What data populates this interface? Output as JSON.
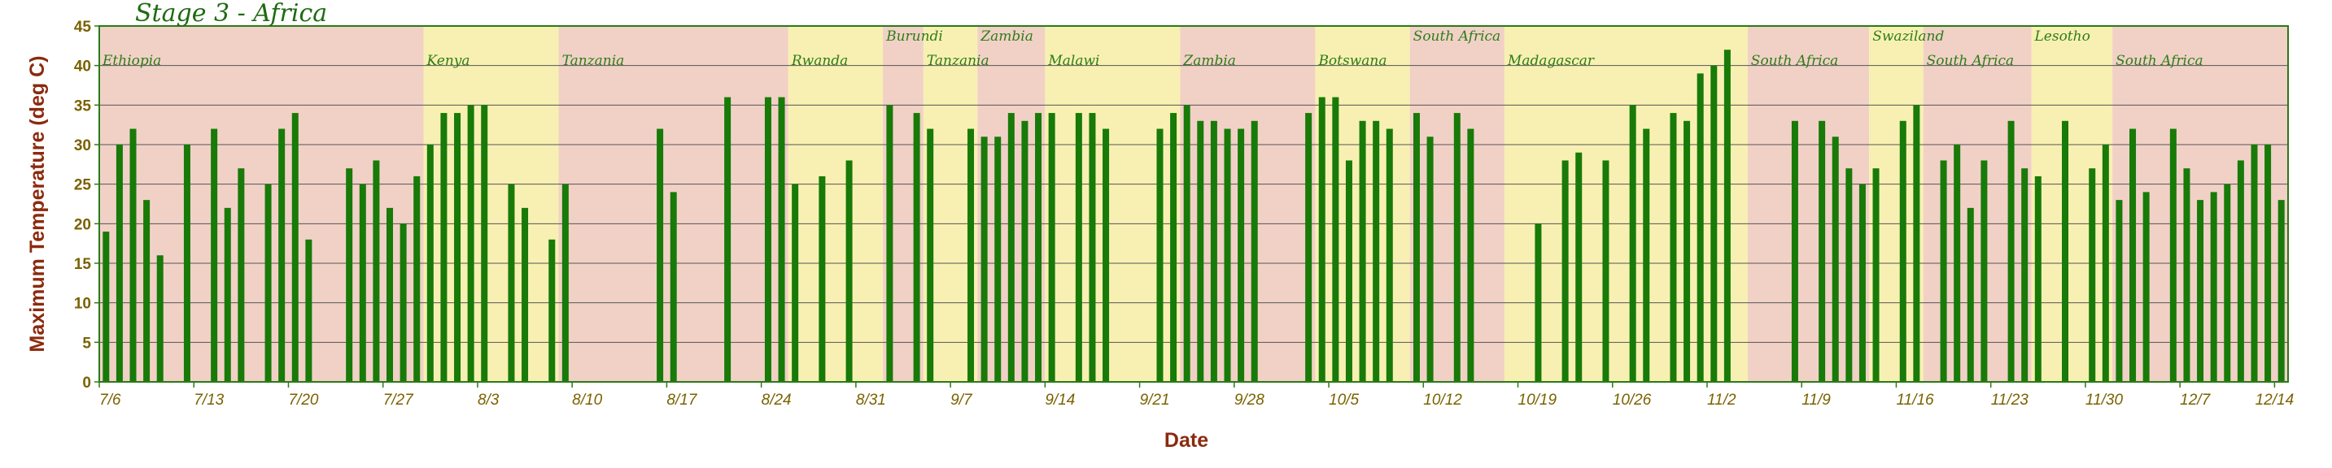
{
  "chart_data": {
    "type": "bar",
    "title": "Stage 3 - Africa",
    "xlabel": "Date",
    "ylabel": "Maximum Temperature (deg C)",
    "ylim": [
      0,
      45
    ],
    "yticks": [
      0,
      5,
      10,
      15,
      20,
      25,
      30,
      35,
      40,
      45
    ],
    "grid": true,
    "xlim": [
      "2010-07-06",
      "2010-12-14"
    ],
    "xticks": [
      "7/6",
      "7/13",
      "7/20",
      "7/27",
      "8/3",
      "8/10",
      "8/17",
      "8/24",
      "8/31",
      "9/7",
      "9/14",
      "9/21",
      "9/28",
      "10/5",
      "10/12",
      "10/19",
      "10/26",
      "11/2",
      "11/9",
      "11/16",
      "11/23",
      "11/30",
      "12/7",
      "12/14"
    ],
    "xtick_dates": [
      "2010-07-06",
      "2010-07-13",
      "2010-07-20",
      "2010-07-27",
      "2010-08-03",
      "2010-08-10",
      "2010-08-17",
      "2010-08-24",
      "2010-08-31",
      "2010-09-07",
      "2010-09-14",
      "2010-09-21",
      "2010-09-28",
      "2010-10-05",
      "2010-10-12",
      "2010-10-19",
      "2010-10-26",
      "2010-11-02",
      "2010-11-09",
      "2010-11-16",
      "2010-11-23",
      "2010-11-30",
      "2010-12-07",
      "2010-12-14"
    ],
    "colors": {
      "bar": "#187a08",
      "band_pink": "#f1d1c6",
      "band_yellow": "#f8f0b2",
      "frame": "#2a7a18",
      "grid": "#555555"
    },
    "country_bands": [
      {
        "name": "Ethiopia",
        "start": "2010-07-06",
        "end": "2010-07-30",
        "color": "pink",
        "label_level": "low"
      },
      {
        "name": "Kenya",
        "start": "2010-07-30",
        "end": "2010-08-09",
        "color": "yellow",
        "label_level": "low"
      },
      {
        "name": "Tanzania",
        "start": "2010-08-09",
        "end": "2010-08-26",
        "color": "pink",
        "label_level": "low"
      },
      {
        "name": "Rwanda",
        "start": "2010-08-26",
        "end": "2010-09-02",
        "color": "yellow",
        "label_level": "low"
      },
      {
        "name": "Burundi",
        "start": "2010-09-02",
        "end": "2010-09-05",
        "color": "pink",
        "label_level": "high"
      },
      {
        "name": "Tanzania",
        "start": "2010-09-05",
        "end": "2010-09-09",
        "color": "yellow",
        "label_level": "low"
      },
      {
        "name": "Zambia",
        "start": "2010-09-09",
        "end": "2010-09-14",
        "color": "pink",
        "label_level": "high"
      },
      {
        "name": "Malawi",
        "start": "2010-09-14",
        "end": "2010-09-24",
        "color": "yellow",
        "label_level": "low"
      },
      {
        "name": "Zambia",
        "start": "2010-09-24",
        "end": "2010-10-04",
        "color": "pink",
        "label_level": "low"
      },
      {
        "name": "Botswana",
        "start": "2010-10-04",
        "end": "2010-10-11",
        "color": "yellow",
        "label_level": "low"
      },
      {
        "name": "South Africa",
        "start": "2010-10-11",
        "end": "2010-10-18",
        "color": "pink",
        "label_level": "high"
      },
      {
        "name": "Madagascar",
        "start": "2010-10-18",
        "end": "2010-11-05",
        "color": "yellow",
        "label_level": "low"
      },
      {
        "name": "South Africa",
        "start": "2010-11-05",
        "end": "2010-11-14",
        "color": "pink",
        "label_level": "low"
      },
      {
        "name": "Swaziland",
        "start": "2010-11-14",
        "end": "2010-11-18",
        "color": "yellow",
        "label_level": "high"
      },
      {
        "name": "South Africa",
        "start": "2010-11-18",
        "end": "2010-11-26",
        "color": "pink",
        "label_level": "low"
      },
      {
        "name": "Lesotho",
        "start": "2010-11-26",
        "end": "2010-12-02",
        "color": "yellow",
        "label_level": "high"
      },
      {
        "name": "South Africa",
        "start": "2010-12-02",
        "end": "2010-12-16",
        "color": "pink",
        "label_level": "low"
      }
    ],
    "series": [
      {
        "x": [
          "2010-07-06",
          "2010-07-07",
          "2010-07-08",
          "2010-07-09",
          "2010-07-10",
          "2010-07-12",
          "2010-07-14",
          "2010-07-15",
          "2010-07-16",
          "2010-07-18",
          "2010-07-19",
          "2010-07-20",
          "2010-07-21",
          "2010-07-24",
          "2010-07-25",
          "2010-07-26",
          "2010-07-27",
          "2010-07-28",
          "2010-07-29",
          "2010-07-30",
          "2010-07-31",
          "2010-08-01",
          "2010-08-02",
          "2010-08-03",
          "2010-08-05",
          "2010-08-06",
          "2010-08-08",
          "2010-08-09",
          "2010-08-16",
          "2010-08-17",
          "2010-08-21",
          "2010-08-24",
          "2010-08-25",
          "2010-08-26",
          "2010-08-28",
          "2010-08-30",
          "2010-09-02",
          "2010-09-04",
          "2010-09-05",
          "2010-09-08",
          "2010-09-09",
          "2010-09-10",
          "2010-09-11",
          "2010-09-12",
          "2010-09-13",
          "2010-09-14",
          "2010-09-16",
          "2010-09-17",
          "2010-09-18",
          "2010-09-22",
          "2010-09-23",
          "2010-09-24",
          "2010-09-25",
          "2010-09-26",
          "2010-09-27",
          "2010-09-28",
          "2010-09-29",
          "2010-10-03",
          "2010-10-04",
          "2010-10-05",
          "2010-10-06",
          "2010-10-07",
          "2010-10-08",
          "2010-10-09",
          "2010-10-11",
          "2010-10-12",
          "2010-10-14",
          "2010-10-15",
          "2010-10-20",
          "2010-10-22",
          "2010-10-23",
          "2010-10-25",
          "2010-10-27",
          "2010-10-28",
          "2010-10-30",
          "2010-10-31",
          "2010-11-01",
          "2010-11-02",
          "2010-11-03",
          "2010-11-08",
          "2010-11-10",
          "2010-11-11",
          "2010-11-12",
          "2010-11-13",
          "2010-11-14",
          "2010-11-16",
          "2010-11-17",
          "2010-11-19",
          "2010-11-20",
          "2010-11-21",
          "2010-11-22",
          "2010-11-24",
          "2010-11-25",
          "2010-11-26",
          "2010-11-28",
          "2010-11-30",
          "2010-12-01",
          "2010-12-02",
          "2010-12-03",
          "2010-12-04",
          "2010-12-06",
          "2010-12-07",
          "2010-12-08",
          "2010-12-09",
          "2010-12-10",
          "2010-12-11",
          "2010-12-12",
          "2010-12-13",
          "2010-12-14"
        ],
        "values": [
          19,
          30,
          32,
          23,
          16,
          30,
          32,
          22,
          27,
          25,
          32,
          34,
          18,
          27,
          25,
          28,
          22,
          20,
          26,
          30,
          34,
          34,
          35,
          35,
          25,
          22,
          18,
          25,
          32,
          24,
          36,
          36,
          36,
          25,
          26,
          28,
          35,
          34,
          32,
          32,
          31,
          31,
          34,
          33,
          34,
          34,
          34,
          34,
          32,
          32,
          34,
          35,
          33,
          33,
          32,
          32,
          33,
          34,
          36,
          36,
          28,
          33,
          33,
          32,
          34,
          31,
          34,
          32,
          20,
          28,
          29,
          28,
          35,
          32,
          34,
          33,
          39,
          40,
          42,
          33,
          33,
          31,
          27,
          25,
          27,
          33,
          35,
          28,
          30,
          22,
          28,
          33,
          27,
          26,
          33,
          27,
          30,
          23,
          32,
          24,
          32,
          27,
          23,
          24,
          25,
          28,
          30,
          30,
          23
        ]
      }
    ]
  }
}
